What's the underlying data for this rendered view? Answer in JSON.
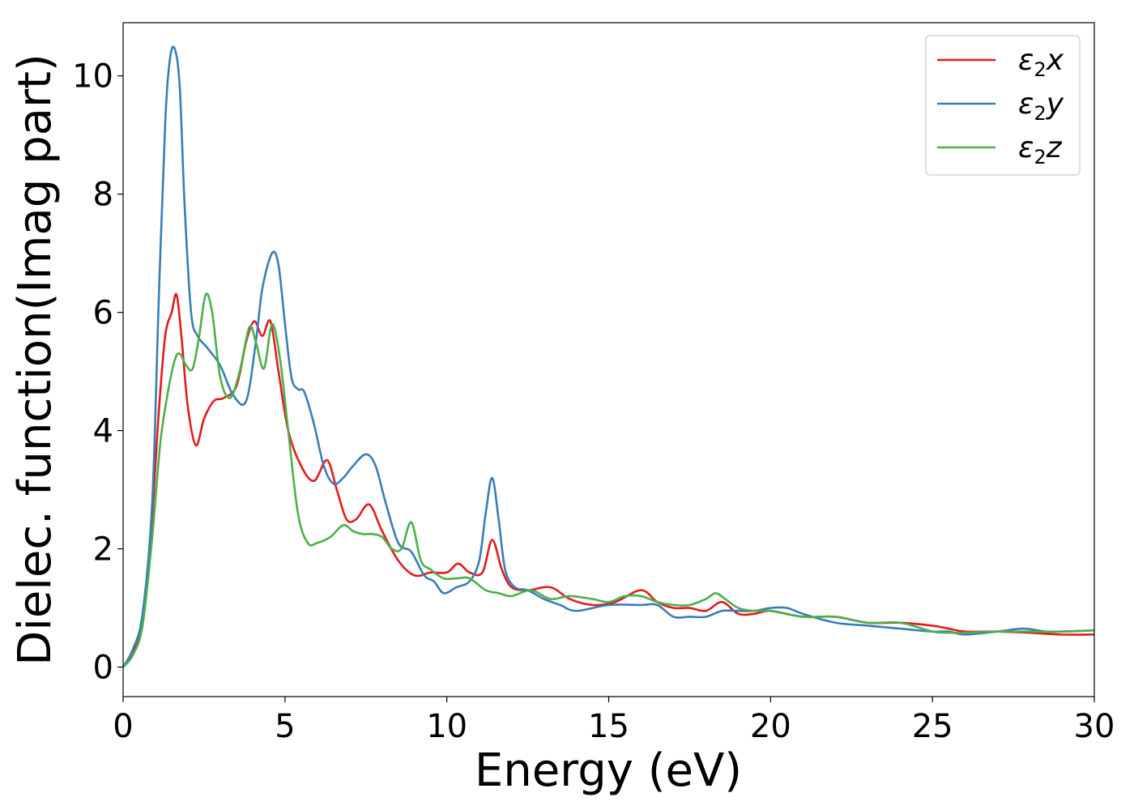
{
  "chart_data": {
    "type": "line",
    "xlabel": "Energy (eV)",
    "ylabel": "Dielec. function(Imag part)",
    "xlim": [
      0,
      30
    ],
    "ylim": [
      -0.5,
      10.9
    ],
    "xticks": [
      0,
      5,
      10,
      15,
      20,
      25,
      30
    ],
    "yticks": [
      0,
      2,
      4,
      6,
      8,
      10
    ],
    "xtick_labels": [
      "0",
      "5",
      "10",
      "15",
      "20",
      "25",
      "30"
    ],
    "ytick_labels": [
      "0",
      "2",
      "4",
      "6",
      "8",
      "10"
    ],
    "grid": false,
    "legend_position": "top-right",
    "series": [
      {
        "name": "ε2x",
        "legend": {
          "symbol": "ε",
          "sub": "2",
          "var": "x"
        },
        "color": "#e41a1c",
        "x": [
          0,
          0.3,
          0.6,
          0.9,
          1.1,
          1.3,
          1.5,
          1.65,
          1.8,
          2.0,
          2.25,
          2.5,
          2.8,
          3.1,
          3.5,
          3.8,
          4.05,
          4.3,
          4.55,
          4.8,
          5.1,
          5.5,
          5.9,
          6.3,
          6.6,
          6.9,
          7.2,
          7.6,
          8.0,
          8.5,
          9.0,
          9.5,
          10.0,
          10.35,
          10.7,
          11.1,
          11.4,
          11.7,
          12.0,
          12.5,
          13.2,
          13.8,
          14.5,
          15.2,
          16.0,
          16.5,
          17.0,
          17.5,
          18.0,
          18.5,
          19.0,
          19.5,
          20.0,
          21.0,
          22.0,
          23.0,
          24.0,
          25.0,
          25.5,
          26.0,
          27.0,
          28.0,
          29.0,
          30.0
        ],
        "y": [
          0,
          0.25,
          0.8,
          2.6,
          4.3,
          5.6,
          6.0,
          6.3,
          5.6,
          4.4,
          3.75,
          4.2,
          4.5,
          4.55,
          4.75,
          5.5,
          5.85,
          5.6,
          5.85,
          5.0,
          4.0,
          3.4,
          3.15,
          3.5,
          3.0,
          2.5,
          2.5,
          2.75,
          2.3,
          1.8,
          1.55,
          1.6,
          1.6,
          1.75,
          1.6,
          1.6,
          2.15,
          1.65,
          1.35,
          1.3,
          1.35,
          1.15,
          1.05,
          1.1,
          1.3,
          1.1,
          1.0,
          1.0,
          0.95,
          1.1,
          0.9,
          0.9,
          0.95,
          0.85,
          0.85,
          0.75,
          0.75,
          0.7,
          0.65,
          0.6,
          0.6,
          0.58,
          0.55,
          0.55
        ]
      },
      {
        "name": "ε2y",
        "legend": {
          "symbol": "ε",
          "sub": "2",
          "var": "y"
        },
        "color": "#377eb8",
        "x": [
          0,
          0.3,
          0.6,
          0.9,
          1.1,
          1.3,
          1.45,
          1.6,
          1.75,
          1.9,
          2.1,
          2.3,
          2.6,
          3.0,
          3.4,
          3.8,
          4.1,
          4.3,
          4.6,
          4.8,
          5.0,
          5.2,
          5.4,
          5.6,
          5.9,
          6.2,
          6.5,
          6.8,
          7.1,
          7.5,
          7.8,
          8.1,
          8.5,
          8.9,
          9.3,
          9.6,
          9.9,
          10.3,
          10.7,
          11.0,
          11.2,
          11.4,
          11.6,
          11.8,
          12.1,
          12.5,
          13.0,
          13.5,
          14.0,
          15.0,
          16.0,
          16.5,
          17.0,
          17.5,
          18.0,
          18.5,
          19.0,
          19.5,
          20.0,
          20.5,
          21.0,
          22.0,
          23.0,
          24.0,
          25.0,
          25.5,
          26.0,
          27.0,
          27.8,
          28.5,
          29.0,
          30.0
        ],
        "y": [
          0,
          0.3,
          0.9,
          2.8,
          6.2,
          9.2,
          10.3,
          10.45,
          9.8,
          7.8,
          6.0,
          5.6,
          5.4,
          5.1,
          4.6,
          4.5,
          5.5,
          6.4,
          7.0,
          6.8,
          5.8,
          4.9,
          4.7,
          4.65,
          4.1,
          3.4,
          3.1,
          3.2,
          3.4,
          3.6,
          3.4,
          2.8,
          2.1,
          1.95,
          1.55,
          1.45,
          1.25,
          1.35,
          1.45,
          1.8,
          2.6,
          3.2,
          2.5,
          1.65,
          1.35,
          1.3,
          1.15,
          1.05,
          0.95,
          1.05,
          1.05,
          1.05,
          0.85,
          0.85,
          0.85,
          0.95,
          0.95,
          0.95,
          1.0,
          1.0,
          0.9,
          0.75,
          0.7,
          0.65,
          0.6,
          0.6,
          0.55,
          0.6,
          0.65,
          0.6,
          0.6,
          0.62
        ]
      },
      {
        "name": "ε2z",
        "legend": {
          "symbol": "ε",
          "sub": "2",
          "var": "z"
        },
        "color": "#4daf4a",
        "x": [
          0,
          0.3,
          0.6,
          0.9,
          1.15,
          1.4,
          1.6,
          1.75,
          1.95,
          2.15,
          2.35,
          2.55,
          2.75,
          3.0,
          3.3,
          3.6,
          3.9,
          4.1,
          4.35,
          4.6,
          4.85,
          5.1,
          5.4,
          5.7,
          6.0,
          6.4,
          6.8,
          7.1,
          7.4,
          7.7,
          8.0,
          8.3,
          8.6,
          8.9,
          9.2,
          9.5,
          9.9,
          10.3,
          10.7,
          11.2,
          11.6,
          12.0,
          12.6,
          13.2,
          13.8,
          14.5,
          15.0,
          15.5,
          16.0,
          16.5,
          17.0,
          17.5,
          18.0,
          18.3,
          18.6,
          19.0,
          19.5,
          20.0,
          21.0,
          22.0,
          23.0,
          24.0,
          25.0,
          25.5,
          26.0,
          27.0,
          28.0,
          29.0,
          30.0
        ],
        "y": [
          0,
          0.2,
          0.7,
          2.2,
          3.8,
          4.7,
          5.2,
          5.3,
          5.1,
          5.05,
          5.6,
          6.3,
          6.0,
          4.9,
          4.55,
          5.0,
          5.75,
          5.5,
          5.05,
          5.8,
          5.2,
          4.0,
          2.6,
          2.1,
          2.1,
          2.2,
          2.4,
          2.3,
          2.25,
          2.25,
          2.2,
          2.0,
          2.0,
          2.45,
          1.8,
          1.65,
          1.5,
          1.5,
          1.5,
          1.3,
          1.25,
          1.2,
          1.3,
          1.15,
          1.2,
          1.15,
          1.1,
          1.2,
          1.2,
          1.1,
          1.05,
          1.05,
          1.15,
          1.25,
          1.15,
          1.0,
          0.95,
          0.95,
          0.85,
          0.85,
          0.75,
          0.75,
          0.6,
          0.58,
          0.58,
          0.6,
          0.6,
          0.6,
          0.62
        ]
      }
    ]
  }
}
